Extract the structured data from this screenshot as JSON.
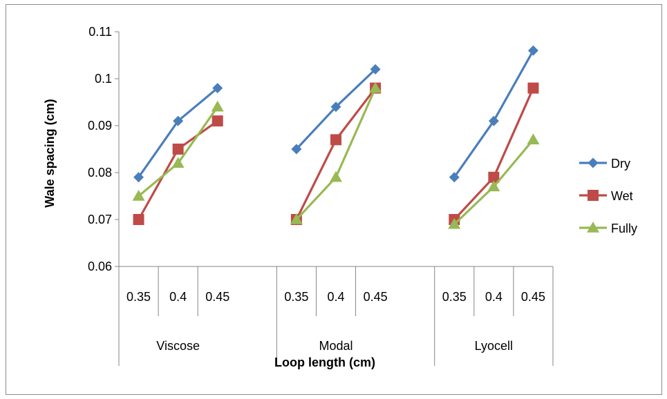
{
  "chart_data": {
    "type": "line",
    "ylabel": "Wale spacing (cm)",
    "xlabel": "Loop length (cm)",
    "ylim": [
      0.06,
      0.11
    ],
    "yticks": [
      "0.06",
      "0.07",
      "0.08",
      "0.09",
      "0.1",
      "0.11"
    ],
    "ytick_values": [
      0.06,
      0.07,
      0.08,
      0.09,
      0.1,
      0.11
    ],
    "groups": [
      {
        "name": "Viscose",
        "categories": [
          "0.35",
          "0.4",
          "0.45"
        ]
      },
      {
        "name": "Modal",
        "categories": [
          "0.35",
          "0.4",
          "0.45"
        ]
      },
      {
        "name": "Lyocell",
        "categories": [
          "0.35",
          "0.4",
          "0.45"
        ]
      }
    ],
    "series": [
      {
        "name": "Dry",
        "color": "#4a7ebb",
        "marker": "diamond",
        "values": [
          [
            0.079,
            0.091,
            0.098
          ],
          [
            0.085,
            0.094,
            0.102
          ],
          [
            0.079,
            0.091,
            0.106
          ]
        ]
      },
      {
        "name": "Wet",
        "color": "#be4b48",
        "marker": "square",
        "values": [
          [
            0.07,
            0.085,
            0.091
          ],
          [
            0.07,
            0.087,
            0.098
          ],
          [
            0.07,
            0.079,
            0.098
          ]
        ]
      },
      {
        "name": "Fully",
        "color": "#98b954",
        "marker": "triangle",
        "values": [
          [
            0.075,
            0.082,
            0.094
          ],
          [
            0.07,
            0.079,
            0.098
          ],
          [
            0.069,
            0.077,
            0.087
          ]
        ]
      }
    ],
    "legend_position": "right",
    "grid": false
  }
}
